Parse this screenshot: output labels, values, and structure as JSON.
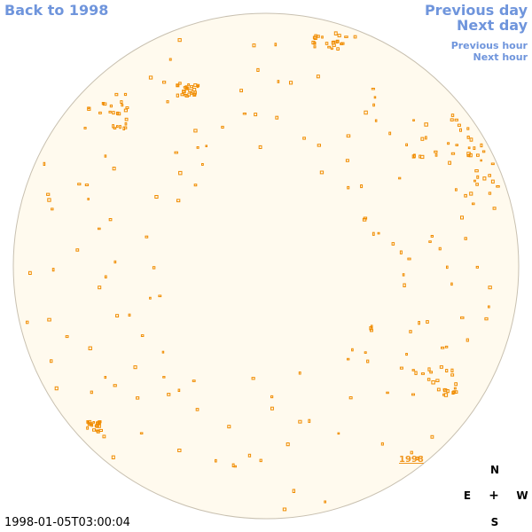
{
  "nav": {
    "back_label": "Back to 1998",
    "previous_day_label": "Previous day",
    "next_day_label": "Next day",
    "previous_hour_label": "Previous hour",
    "next_hour_label": "Next hour"
  },
  "sun_disk": {
    "fill_color": "#fffaee",
    "border_color": "#c8c0b0",
    "spot_color": "#f08c00",
    "year_label": "1998"
  },
  "compass": {
    "north": "N",
    "south": "S",
    "east": "E",
    "west": "W",
    "center": "+"
  },
  "timestamp": "1998-01-05T03:00:04",
  "colors": {
    "link": "#6f95dc",
    "spot": "#f08c00"
  }
}
